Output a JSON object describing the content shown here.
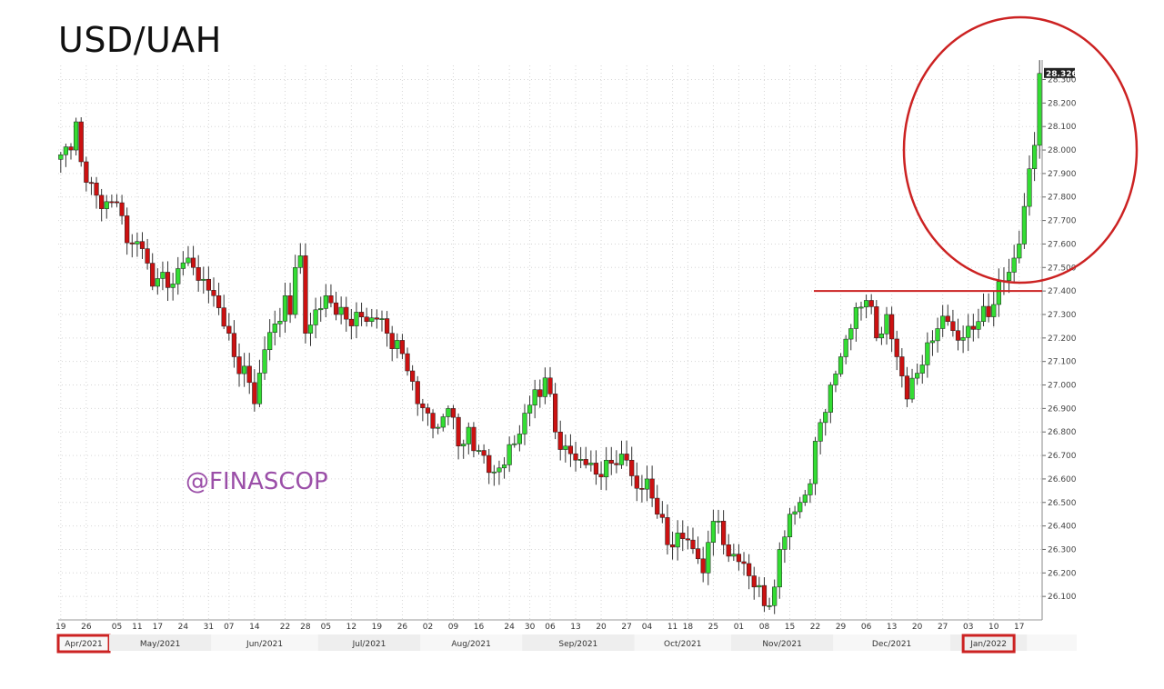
{
  "title": "USD/UAH",
  "watermark": "@FINASCOP",
  "colors": {
    "up": "#33dd33",
    "down": "#cc1111",
    "wick": "#333333",
    "annotation": "#cc2222",
    "grid": "#d6d6d6",
    "month_band": "#eeeeee",
    "watermark": "#9b4fa8"
  },
  "chart_data": {
    "type": "candlestick",
    "title": "USD/UAH",
    "ylim": [
      26.0,
      28.36
    ],
    "y_ticks": [
      26.1,
      26.2,
      26.3,
      26.4,
      26.5,
      26.6,
      26.7,
      26.8,
      26.9,
      27.0,
      27.1,
      27.2,
      27.3,
      27.4,
      27.5,
      27.6,
      27.7,
      27.8,
      27.9,
      28.0,
      28.1,
      28.2,
      28.3
    ],
    "y_tick_labels": [
      "26.100",
      "26.200",
      "26.300",
      "26.400",
      "26.500",
      "26.600",
      "26.700",
      "26.800",
      "26.900",
      "27.000",
      "27.100",
      "27.200",
      "27.300",
      "27.400",
      "27.500",
      "27.600",
      "27.700",
      "27.800",
      "27.900",
      "28.000",
      "28.100",
      "28.200",
      "28.300"
    ],
    "last_price": 28.326,
    "last_price_label": "28.326",
    "grid": true,
    "x_ticks": [
      "19",
      "26",
      "05",
      "11",
      "17",
      "24",
      "31",
      "07",
      "14",
      "22",
      "28",
      "05",
      "12",
      "19",
      "26",
      "02",
      "09",
      "16",
      "24",
      "30",
      "06",
      "13",
      "20",
      "27",
      "04",
      "11",
      "18",
      "25",
      "01",
      "08",
      "15",
      "22",
      "29",
      "06",
      "13",
      "20",
      "27",
      "03",
      "10",
      "17"
    ],
    "x_tick_index": [
      0,
      5,
      11,
      15,
      19,
      24,
      29,
      33,
      38,
      44,
      48,
      52,
      57,
      62,
      67,
      72,
      77,
      82,
      88,
      92,
      96,
      101,
      106,
      111,
      115,
      120,
      123,
      128,
      133,
      138,
      143,
      148,
      153,
      158,
      163,
      168,
      173,
      178,
      183,
      188
    ],
    "months": [
      {
        "label": "Apr/2021",
        "start": 0,
        "end": 9,
        "highlight": true
      },
      {
        "label": "May/2021",
        "start": 10,
        "end": 29,
        "highlight": false
      },
      {
        "label": "Jun/2021",
        "start": 30,
        "end": 50,
        "highlight": false
      },
      {
        "label": "Jul/2021",
        "start": 51,
        "end": 70,
        "highlight": false
      },
      {
        "label": "Aug/2021",
        "start": 71,
        "end": 90,
        "highlight": false
      },
      {
        "label": "Sep/2021",
        "start": 91,
        "end": 112,
        "highlight": false
      },
      {
        "label": "Oct/2021",
        "start": 113,
        "end": 131,
        "highlight": false
      },
      {
        "label": "Nov/2021",
        "start": 132,
        "end": 151,
        "highlight": false
      },
      {
        "label": "Dec/2021",
        "start": 152,
        "end": 174,
        "highlight": false
      },
      {
        "label": "Jan/2022",
        "start": 175,
        "end": 189,
        "highlight": true
      }
    ],
    "anchors": [
      [
        0,
        27.98
      ],
      [
        2,
        28.0
      ],
      [
        3,
        28.12
      ],
      [
        4,
        27.95
      ],
      [
        6,
        27.86
      ],
      [
        8,
        27.75
      ],
      [
        10,
        27.78
      ],
      [
        12,
        27.72
      ],
      [
        14,
        27.6
      ],
      [
        16,
        27.58
      ],
      [
        18,
        27.42
      ],
      [
        20,
        27.48
      ],
      [
        22,
        27.43
      ],
      [
        24,
        27.52
      ],
      [
        26,
        27.5
      ],
      [
        28,
        27.45
      ],
      [
        30,
        27.38
      ],
      [
        32,
        27.25
      ],
      [
        34,
        27.12
      ],
      [
        36,
        27.08
      ],
      [
        38,
        26.92
      ],
      [
        40,
        27.15
      ],
      [
        42,
        27.26
      ],
      [
        44,
        27.38
      ],
      [
        45,
        27.3
      ],
      [
        46,
        27.5
      ],
      [
        47,
        27.55
      ],
      [
        48,
        27.22
      ],
      [
        50,
        27.32
      ],
      [
        52,
        27.38
      ],
      [
        54,
        27.3
      ],
      [
        56,
        27.28
      ],
      [
        58,
        27.31
      ],
      [
        60,
        27.27
      ],
      [
        62,
        27.28
      ],
      [
        64,
        27.22
      ],
      [
        66,
        27.19
      ],
      [
        68,
        27.06
      ],
      [
        70,
        26.92
      ],
      [
        72,
        26.88
      ],
      [
        74,
        26.82
      ],
      [
        76,
        26.9
      ],
      [
        78,
        26.74
      ],
      [
        80,
        26.82
      ],
      [
        81,
        26.72
      ],
      [
        83,
        26.7
      ],
      [
        85,
        26.63
      ],
      [
        87,
        26.66
      ],
      [
        89,
        26.75
      ],
      [
        91,
        26.88
      ],
      [
        93,
        26.98
      ],
      [
        94,
        26.95
      ],
      [
        95,
        27.03
      ],
      [
        97,
        26.8
      ],
      [
        99,
        26.74
      ],
      [
        101,
        26.68
      ],
      [
        103,
        26.66
      ],
      [
        105,
        26.62
      ],
      [
        107,
        26.68
      ],
      [
        109,
        26.66
      ],
      [
        111,
        26.68
      ],
      [
        113,
        26.56
      ],
      [
        115,
        26.6
      ],
      [
        117,
        26.45
      ],
      [
        119,
        26.32
      ],
      [
        121,
        26.37
      ],
      [
        123,
        26.34
      ],
      [
        125,
        26.26
      ],
      [
        126,
        26.2
      ],
      [
        127,
        26.33
      ],
      [
        128,
        26.42
      ],
      [
        130,
        26.32
      ],
      [
        132,
        26.28
      ],
      [
        134,
        26.24
      ],
      [
        136,
        26.14
      ],
      [
        138,
        26.06
      ],
      [
        140,
        26.14
      ],
      [
        141,
        26.3
      ],
      [
        143,
        26.45
      ],
      [
        145,
        26.5
      ],
      [
        147,
        26.58
      ],
      [
        149,
        26.84
      ],
      [
        151,
        27.0
      ],
      [
        153,
        27.12
      ],
      [
        155,
        27.24
      ],
      [
        156,
        27.33
      ],
      [
        158,
        27.36
      ],
      [
        160,
        27.2
      ],
      [
        162,
        27.3
      ],
      [
        164,
        27.12
      ],
      [
        166,
        26.94
      ],
      [
        168,
        27.05
      ],
      [
        170,
        27.18
      ],
      [
        172,
        27.24
      ],
      [
        174,
        27.27
      ],
      [
        176,
        27.19
      ],
      [
        178,
        27.25
      ],
      [
        180,
        27.27
      ],
      [
        182,
        27.29
      ],
      [
        184,
        27.44
      ],
      [
        186,
        27.48
      ],
      [
        188,
        27.6
      ],
      [
        190,
        27.92
      ],
      [
        191,
        28.02
      ],
      [
        192,
        28.326
      ]
    ]
  },
  "annotations": {
    "resistance_level": 27.4
  }
}
